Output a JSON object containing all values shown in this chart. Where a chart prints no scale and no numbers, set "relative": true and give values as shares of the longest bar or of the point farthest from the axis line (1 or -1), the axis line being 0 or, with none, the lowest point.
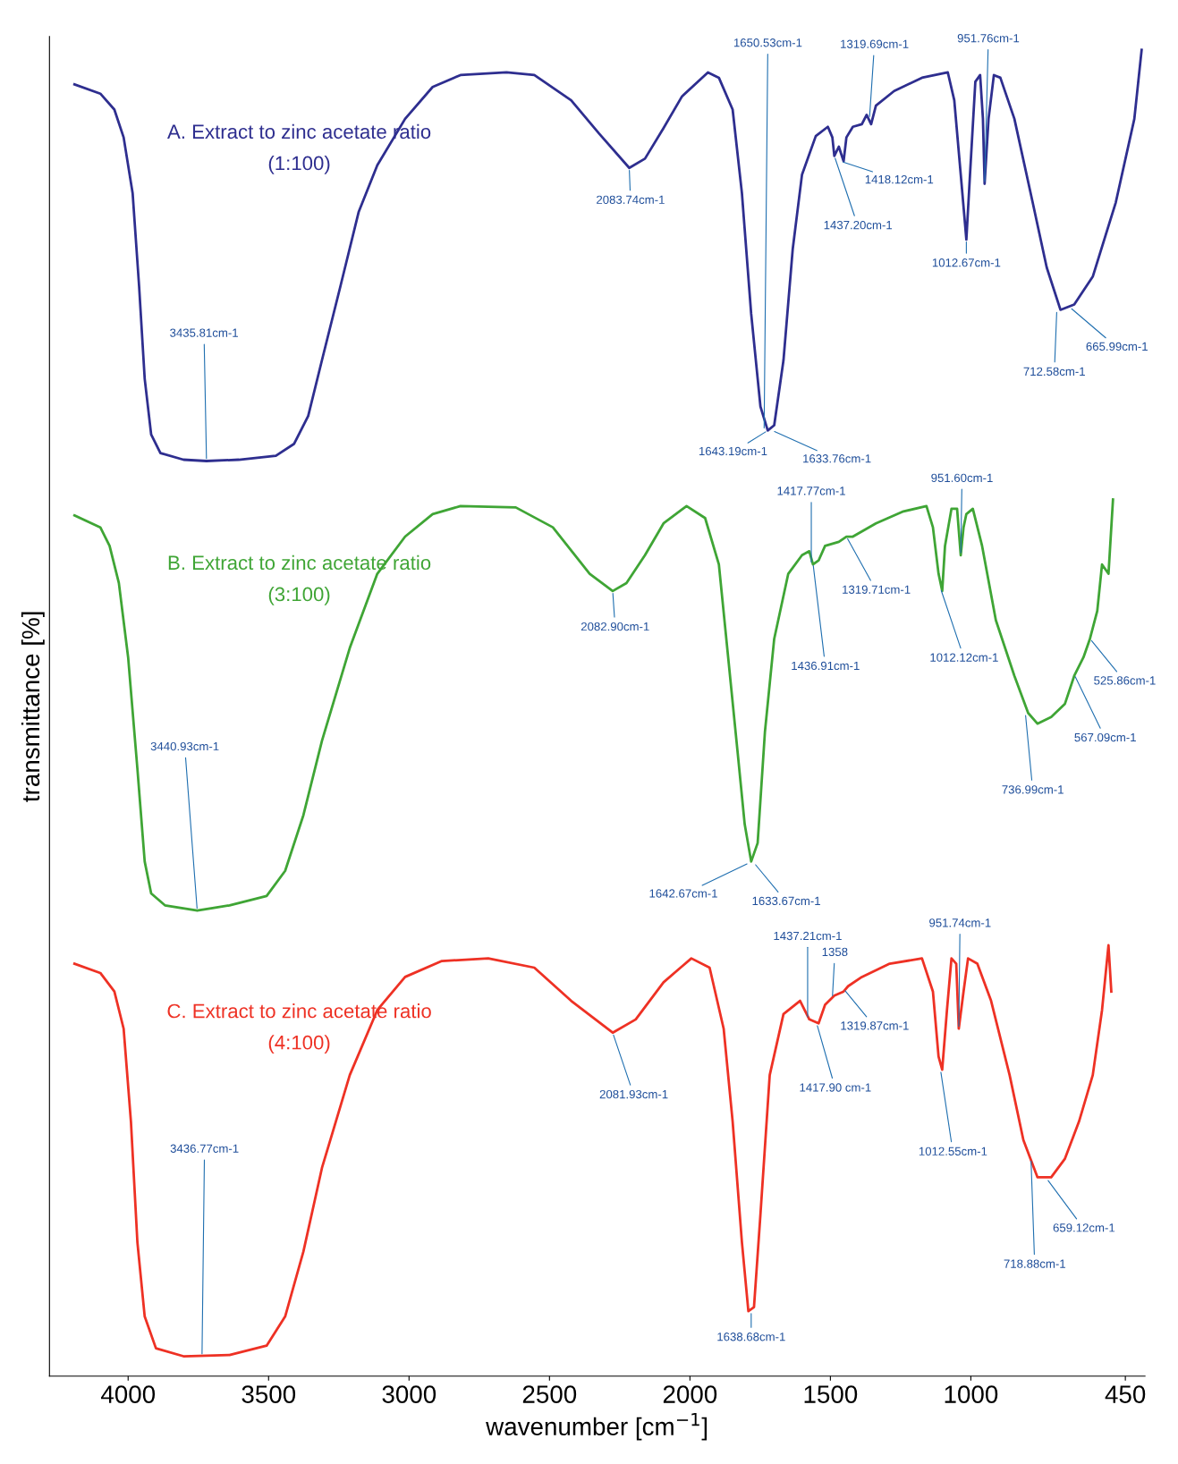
{
  "chart_data": {
    "type": "line",
    "relative": true,
    "xlabel": "wavenumber [cm$^{−1}$]",
    "ylabel": "transmittance [%]",
    "xlim": [
      4280,
      380
    ],
    "xticks": [
      4000,
      3500,
      3000,
      2500,
      2000,
      1500,
      1000,
      450
    ],
    "legend": false,
    "series": [
      {
        "name": "A. Extract to zinc acetate ratio\n(1:100)",
        "color": "#2e2e8f",
        "x": [
          4191,
          4099,
          4049,
          4016,
          3984,
          3961,
          3941,
          3918,
          3885,
          3803,
          3721,
          3606,
          3474,
          3409,
          3359,
          3310,
          3244,
          3179,
          3113,
          3014,
          2916,
          2817,
          2653,
          2554,
          2423,
          2324,
          2216,
          2160,
          2094,
          2028,
          1936,
          1897,
          1848,
          1815,
          1782,
          1749,
          1723,
          1700,
          1667,
          1634,
          1601,
          1552,
          1509,
          1493,
          1486,
          1470,
          1453,
          1443,
          1420,
          1388,
          1371,
          1355,
          1338,
          1273,
          1174,
          1082,
          1059,
          1036,
          1016,
          1003,
          984,
          967,
          957,
          951,
          937,
          918,
          895,
          845,
          780,
          730,
          681,
          632,
          566,
          484,
          418,
          392
        ],
        "values": [
          0.974,
          0.967,
          0.955,
          0.934,
          0.892,
          0.822,
          0.752,
          0.71,
          0.696,
          0.691,
          0.69,
          0.691,
          0.694,
          0.703,
          0.724,
          0.766,
          0.822,
          0.878,
          0.913,
          0.948,
          0.972,
          0.981,
          0.983,
          0.981,
          0.962,
          0.937,
          0.911,
          0.918,
          0.941,
          0.965,
          0.983,
          0.979,
          0.955,
          0.892,
          0.801,
          0.731,
          0.713,
          0.717,
          0.766,
          0.85,
          0.906,
          0.935,
          0.942,
          0.934,
          0.92,
          0.927,
          0.916,
          0.934,
          0.942,
          0.944,
          0.951,
          0.944,
          0.958,
          0.969,
          0.979,
          0.983,
          0.962,
          0.906,
          0.857,
          0.906,
          0.976,
          0.981,
          0.948,
          0.899,
          0.948,
          0.981,
          0.979,
          0.948,
          0.885,
          0.836,
          0.804,
          0.808,
          0.829,
          0.885,
          0.948,
          1.0
        ]
      },
      {
        "name": "B. Extract to zinc acetate ratio\n(3:100)",
        "color": "#3fa535",
        "x": [
          4191,
          4099,
          4066,
          4033,
          4000,
          3967,
          3941,
          3918,
          3869,
          3754,
          3639,
          3507,
          3441,
          3376,
          3310,
          3211,
          3113,
          3014,
          2916,
          2817,
          2620,
          2488,
          2357,
          2275,
          2226,
          2160,
          2094,
          2012,
          1946,
          1897,
          1864,
          1831,
          1805,
          1782,
          1759,
          1733,
          1700,
          1650,
          1601,
          1575,
          1562,
          1542,
          1519,
          1470,
          1443,
          1420,
          1338,
          1240,
          1158,
          1135,
          1115,
          1102,
          1092,
          1069,
          1049,
          1036,
          1026,
          1016,
          993,
          960,
          911,
          845,
          796,
          763,
          714,
          665,
          632,
          599,
          576,
          550,
          533,
          510,
          494
        ],
        "values": [
          0.649,
          0.64,
          0.626,
          0.598,
          0.542,
          0.458,
          0.388,
          0.364,
          0.355,
          0.351,
          0.355,
          0.362,
          0.381,
          0.423,
          0.479,
          0.549,
          0.605,
          0.633,
          0.65,
          0.656,
          0.655,
          0.64,
          0.605,
          0.592,
          0.598,
          0.619,
          0.643,
          0.656,
          0.647,
          0.612,
          0.542,
          0.472,
          0.416,
          0.388,
          0.402,
          0.486,
          0.556,
          0.605,
          0.619,
          0.622,
          0.612,
          0.615,
          0.626,
          0.629,
          0.633,
          0.633,
          0.643,
          0.652,
          0.656,
          0.64,
          0.605,
          0.592,
          0.626,
          0.654,
          0.654,
          0.619,
          0.64,
          0.65,
          0.654,
          0.626,
          0.57,
          0.528,
          0.5,
          0.492,
          0.497,
          0.507,
          0.528,
          0.542,
          0.556,
          0.577,
          0.612,
          0.605,
          0.661
        ]
      },
      {
        "name": "C. Extract to zinc acetate ratio\n(4:100)",
        "color": "#ee3124",
        "x": [
          4191,
          4099,
          4049,
          4016,
          3990,
          3967,
          3941,
          3901,
          3803,
          3639,
          3507,
          3441,
          3376,
          3310,
          3211,
          3113,
          3014,
          2883,
          2718,
          2554,
          2423,
          2275,
          2193,
          2094,
          1995,
          1930,
          1880,
          1848,
          1815,
          1792,
          1772,
          1749,
          1716,
          1667,
          1608,
          1575,
          1542,
          1519,
          1486,
          1453,
          1437,
          1388,
          1289,
          1174,
          1135,
          1115,
          1102,
          1085,
          1069,
          1052,
          1043,
          1026,
          1010,
          977,
          928,
          862,
          813,
          763,
          714,
          665,
          615,
          566,
          533,
          510,
          500
        ],
        "values": [
          0.311,
          0.304,
          0.29,
          0.262,
          0.192,
          0.101,
          0.045,
          0.021,
          0.015,
          0.016,
          0.023,
          0.045,
          0.094,
          0.157,
          0.227,
          0.276,
          0.301,
          0.313,
          0.315,
          0.308,
          0.283,
          0.259,
          0.269,
          0.297,
          0.315,
          0.308,
          0.262,
          0.192,
          0.101,
          0.049,
          0.052,
          0.122,
          0.227,
          0.273,
          0.283,
          0.269,
          0.266,
          0.28,
          0.287,
          0.29,
          0.294,
          0.301,
          0.311,
          0.315,
          0.29,
          0.241,
          0.231,
          0.276,
          0.315,
          0.311,
          0.262,
          0.29,
          0.315,
          0.311,
          0.283,
          0.227,
          0.178,
          0.15,
          0.15,
          0.164,
          0.192,
          0.227,
          0.276,
          0.325,
          0.29
        ]
      }
    ],
    "annotations": [
      {
        "text": "3435.81cm-1",
        "x": 3721,
        "y": 0.69
      },
      {
        "text": "2083.74cm-1",
        "x": 2216,
        "y": 0.911
      },
      {
        "text": "1650.53cm-1",
        "x": 1736,
        "y": 0.713
      },
      {
        "text": "1643.19cm-1",
        "x": 1723,
        "y": 0.713
      },
      {
        "text": "1633.76cm-1",
        "x": 1707,
        "y": 0.713
      },
      {
        "text": "1319.69cm-1",
        "x": 1361,
        "y": 0.948
      },
      {
        "text": "1418.12cm-1",
        "x": 1463,
        "y": 0.916
      },
      {
        "text": "1437.20cm-1",
        "x": 1486,
        "y": 0.92
      },
      {
        "text": "951.76cm-1",
        "x": 951,
        "y": 0.899
      },
      {
        "text": "1012.67cm-1",
        "x": 1016,
        "y": 0.857
      },
      {
        "text": "712.58cm-1",
        "x": 694,
        "y": 0.804
      },
      {
        "text": "665.99cm-1",
        "x": 648,
        "y": 0.806
      },
      {
        "text": "3440.93cm-1",
        "x": 3754,
        "y": 0.351
      },
      {
        "text": "2082.90cm-1",
        "x": 2275,
        "y": 0.592
      },
      {
        "text": "1642.67cm-1",
        "x": 1789,
        "y": 0.387
      },
      {
        "text": "1633.67cm-1",
        "x": 1772,
        "y": 0.387
      },
      {
        "text": "1417.77cm-1",
        "x": 1568,
        "y": 0.612
      },
      {
        "text": "1436.91cm-1",
        "x": 1562,
        "y": 0.613
      },
      {
        "text": "1319.71cm-1",
        "x": 1443,
        "y": 0.633
      },
      {
        "text": "951.60cm-1",
        "x": 1036,
        "y": 0.619
      },
      {
        "text": "1012.12cm-1",
        "x": 1108,
        "y": 0.594
      },
      {
        "text": "736.99cm-1",
        "x": 806,
        "y": 0.5
      },
      {
        "text": "567.09cm-1",
        "x": 632,
        "y": 0.529
      },
      {
        "text": "525.86cm-1",
        "x": 576,
        "y": 0.556
      },
      {
        "text": "3436.77cm-1",
        "x": 3737,
        "y": 0.015
      },
      {
        "text": "2081.93cm-1",
        "x": 2275,
        "y": 0.259
      },
      {
        "text": "1638.68cm-1",
        "x": 1782,
        "y": 0.049
      },
      {
        "text": "1437.21cm-1",
        "x": 1581,
        "y": 0.269
      },
      {
        "text": "1358",
        "x": 1493,
        "y": 0.285
      },
      {
        "text": "1319.87cm-1",
        "x": 1453,
        "y": 0.292
      },
      {
        "text": "1417.90 cm-1",
        "x": 1549,
        "y": 0.266
      },
      {
        "text": "951.74cm-1",
        "x": 1043,
        "y": 0.262
      },
      {
        "text": "1012.55cm-1",
        "x": 1108,
        "y": 0.231
      },
      {
        "text": "718.88cm-1",
        "x": 786,
        "y": 0.164
      },
      {
        "text": "659.12cm-1",
        "x": 730,
        "y": 0.149
      }
    ]
  }
}
